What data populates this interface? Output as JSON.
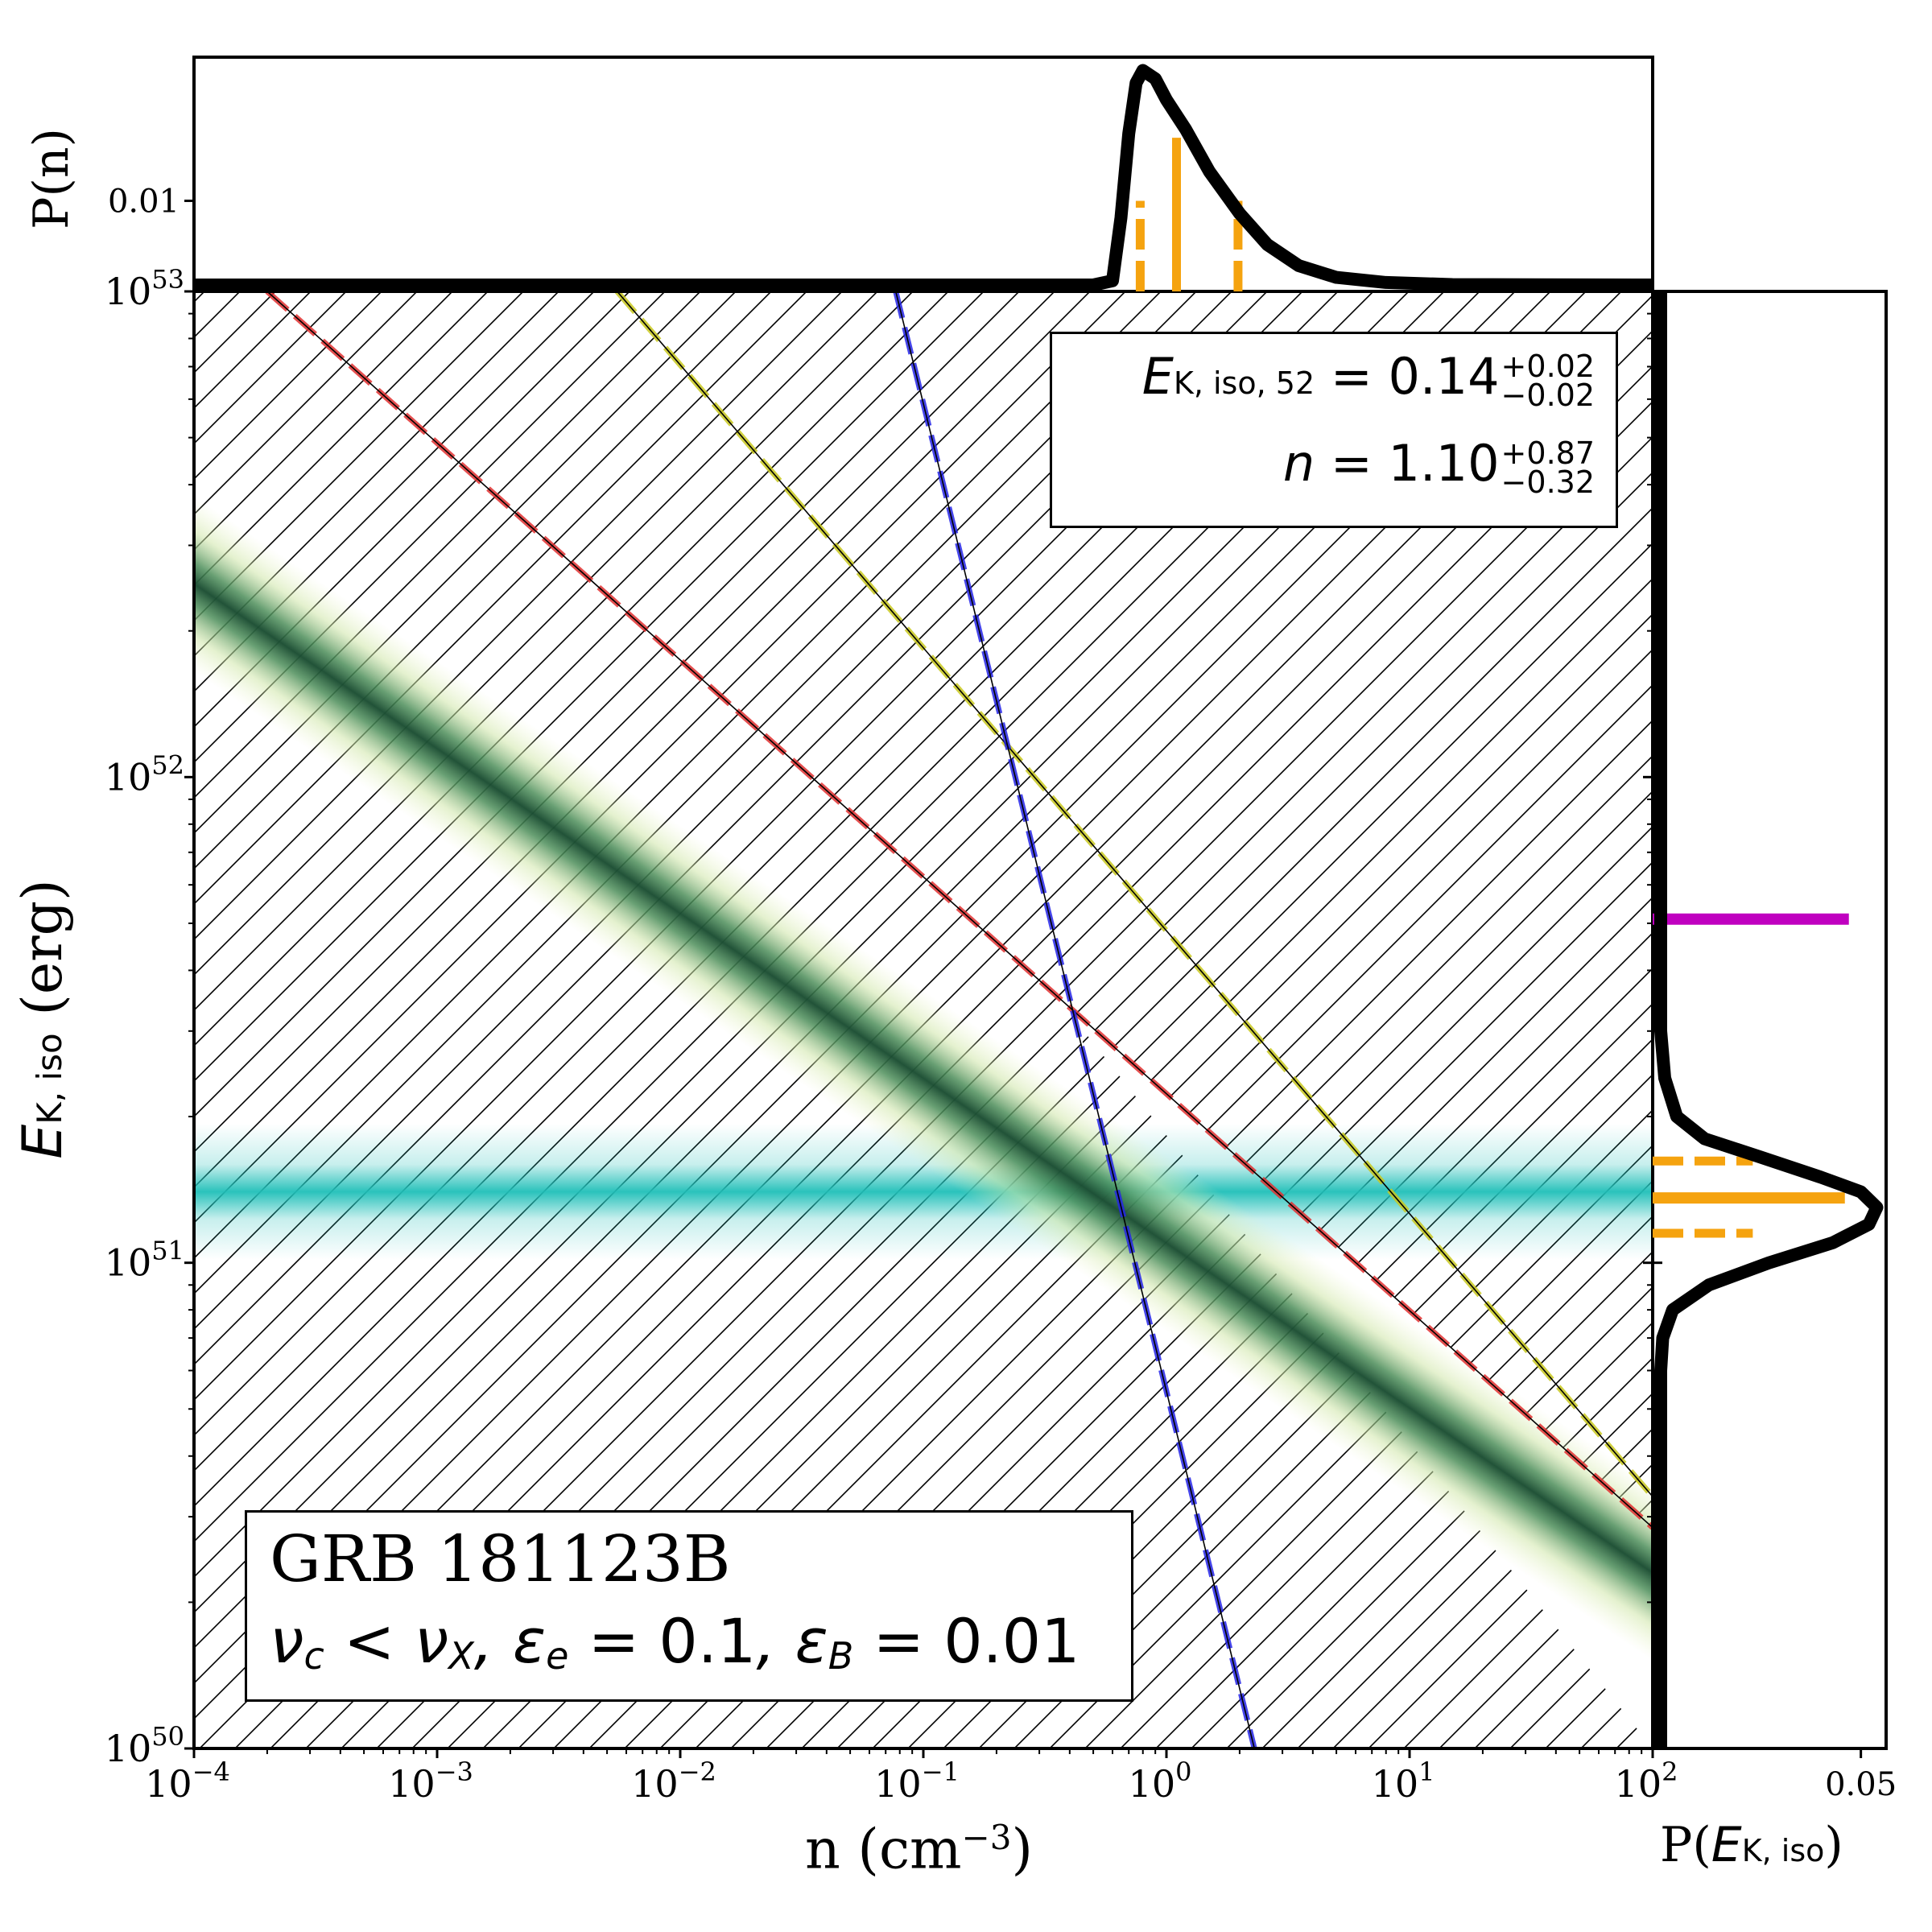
{
  "chart_data": {
    "type": "heatmap",
    "title": "",
    "xlabel": "n (cm",
    "xlabel_exponent": "−3",
    "xlabel_close": ")",
    "ylabel_symbol": "E",
    "ylabel_subscript": "K, iso",
    "ylabel_unit": " (erg)",
    "x_scale": "log",
    "y_scale": "log",
    "xlim": [
      0.0001,
      100
    ],
    "ylim": [
      1e+50,
      1e+53
    ],
    "x_ticks": [
      {
        "value": 0.0001,
        "base": "10",
        "exp": "−4"
      },
      {
        "value": 0.001,
        "base": "10",
        "exp": "−3"
      },
      {
        "value": 0.01,
        "base": "10",
        "exp": "−2"
      },
      {
        "value": 0.1,
        "base": "10",
        "exp": "−1"
      },
      {
        "value": 1,
        "base": "10",
        "exp": "0"
      },
      {
        "value": 10,
        "base": "10",
        "exp": "1"
      },
      {
        "value": 100,
        "base": "10",
        "exp": "2"
      }
    ],
    "y_ticks": [
      {
        "value": 1e+50,
        "base": "10",
        "exp": "50"
      },
      {
        "value": 1e+51,
        "base": "10",
        "exp": "51"
      },
      {
        "value": 1e+52,
        "base": "10",
        "exp": "52"
      },
      {
        "value": 1e+53,
        "base": "10",
        "exp": "53"
      }
    ],
    "bands": [
      {
        "name": "green degeneracy band",
        "color": "#1f5a3a",
        "points": [
          [
            0.0001,
            2.5e+52
          ],
          [
            100,
            2.3e+50
          ]
        ],
        "log_width": 0.13
      },
      {
        "name": "cyan energy band",
        "color": "#1fbfb8",
        "e_center": 1.4e+51,
        "log_width": 0.07
      }
    ],
    "constraint_lines": [
      {
        "name": "red dashed",
        "color": "#e03030",
        "points": [
          [
            0.0002,
            1e+53
          ],
          [
            100,
            2.85e+50
          ]
        ]
      },
      {
        "name": "yellow dashed",
        "color": "#c8c81e",
        "points": [
          [
            0.0055,
            1e+53
          ],
          [
            100,
            3.3e+50
          ]
        ]
      },
      {
        "name": "blue dashed",
        "color": "#2525e6",
        "points": [
          [
            0.077,
            1e+53
          ],
          [
            2.3,
            1e+50
          ]
        ]
      }
    ],
    "allowed_region_note": "unhatched wedge bounded by the three lines",
    "marginal_n": {
      "ylabel": "P(n)",
      "tick_label": "0.01",
      "tick_value": 0.01,
      "ylim": [
        0,
        0.0265
      ],
      "curve": [
        [
          0.0001,
          0.0
        ],
        [
          0.5,
          0.0
        ],
        [
          0.6,
          0.0005
        ],
        [
          0.65,
          0.008
        ],
        [
          0.7,
          0.018
        ],
        [
          0.75,
          0.024
        ],
        [
          0.8,
          0.0255
        ],
        [
          0.9,
          0.0245
        ],
        [
          1.0,
          0.022
        ],
        [
          1.2,
          0.0185
        ],
        [
          1.5,
          0.0135
        ],
        [
          2.0,
          0.0085
        ],
        [
          2.6,
          0.0048
        ],
        [
          3.5,
          0.0023
        ],
        [
          5,
          0.0009
        ],
        [
          8,
          0.0003
        ],
        [
          15,
          5e-05
        ],
        [
          100,
          0.0
        ]
      ],
      "median": 1.1,
      "lower": 0.78,
      "upper": 1.97,
      "median_height": 0.0175,
      "bound_height": 0.01,
      "color": "#f5a30f"
    },
    "marginal_E": {
      "xlabel_prefix": "P(",
      "xlabel_symbol": "E",
      "xlabel_subscript": "K, iso",
      "xlabel_suffix": ")",
      "tick_label": "0.05",
      "tick_value": 0.05,
      "xlim": [
        0,
        0.0555
      ],
      "curve": [
        [
          1e+50,
          0.0
        ],
        [
          6e+50,
          0.0
        ],
        [
          7e+50,
          0.0005
        ],
        [
          8e+50,
          0.003
        ],
        [
          9e+50,
          0.012
        ],
        [
          1e+51,
          0.027
        ],
        [
          1.1e+51,
          0.043
        ],
        [
          1.2e+51,
          0.052
        ],
        [
          1.3e+51,
          0.054
        ],
        [
          1.4e+51,
          0.05
        ],
        [
          1.5e+51,
          0.04
        ],
        [
          1.65e+51,
          0.025
        ],
        [
          1.8e+51,
          0.011
        ],
        [
          2e+51,
          0.004
        ],
        [
          2.4e+51,
          0.001
        ],
        [
          3e+51,
          0.0
        ],
        [
          1e+53,
          0.0
        ]
      ],
      "median": 1.36e+51,
      "lower": 1.15e+51,
      "upper": 1.62e+51,
      "median_length": 0.046,
      "bound_length": 0.023,
      "color": "#f5a30f",
      "reference_value": 5.1e+51,
      "reference_length": 0.047,
      "reference_color": "#c000c0"
    }
  },
  "legend_fit": {
    "e_symbol": "E",
    "e_subscript": "K, iso, 52",
    "e_value": " = 0.14",
    "e_plus": "+0.02",
    "e_minus": "−0.02",
    "n_symbol": "n",
    "n_value": " = 1.10",
    "n_plus": "+0.87",
    "n_minus": "−0.32"
  },
  "legend_grb": {
    "name": "GRB 181123B",
    "nu": "ν",
    "nu_c": "c",
    "lt": " < ",
    "nu_x": "X",
    "eps_e_label": ", ε",
    "eps_e_sub": "e",
    "eps_e_value": " = 0.1",
    "eps_b_label": ", ε",
    "eps_b_sub": "B",
    "eps_b_value": " = 0.01"
  }
}
